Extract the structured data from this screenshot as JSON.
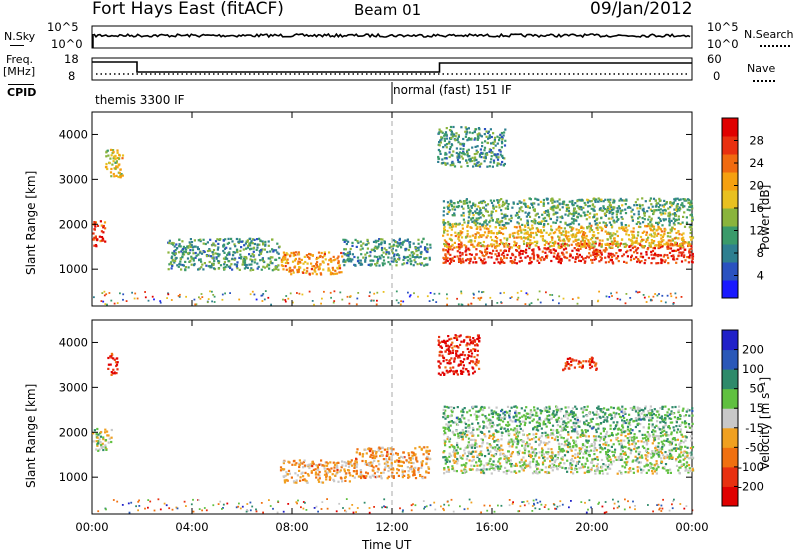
{
  "header": {
    "station": "Fort Hays East (fitACF)",
    "beam": "Beam 01",
    "date": "09/Jan/2012"
  },
  "top_panels": {
    "nsky_label": "N.Sky",
    "nsearch_label": "N.Search",
    "nsky_ticks": [
      "10^5",
      "10^0"
    ],
    "nsearch_ticks": [
      "10^5",
      "10^0"
    ],
    "freq_label": "Freq.",
    "freq_unit": "[MHz]",
    "freq_ticks": [
      "18",
      "8"
    ],
    "nave_label": "Nave",
    "nave_ticks": [
      "60",
      "0"
    ],
    "cpid_label": "CPID",
    "cpid_modes": [
      {
        "label": "themis 3300 IF",
        "start_hour": 0,
        "end_hour": 12
      },
      {
        "label": "normal (fast) 151 IF",
        "start_hour": 12,
        "end_hour": 24
      }
    ]
  },
  "chart_data": [
    {
      "type": "heatmap",
      "name": "power-panel",
      "ylabel": "Slant Range [km]",
      "ylim": [
        180,
        4500
      ],
      "yticks": [
        "1000",
        "2000",
        "3000",
        "4000"
      ],
      "xlim_hours": [
        0,
        24
      ],
      "colorbar": {
        "label": "Power [dB]",
        "ticks": [
          "4",
          "8",
          "12",
          "16",
          "20",
          "24",
          "28"
        ],
        "colors": [
          "#1a1aff",
          "#2a52c0",
          "#2e7f90",
          "#3a9a6a",
          "#8ab43c",
          "#e8c020",
          "#f5a010",
          "#f06a10",
          "#e83010",
          "#e00000"
        ]
      },
      "bands": [
        {
          "start_hour": 0.0,
          "end_hour": 0.5,
          "range_low": 1500,
          "range_high": 2100,
          "level": 0.85
        },
        {
          "start_hour": 0.5,
          "end_hour": 1.2,
          "range_low": 3000,
          "range_high": 3700,
          "level": 0.55
        },
        {
          "start_hour": 3.0,
          "end_hour": 7.5,
          "range_low": 1000,
          "range_high": 1700,
          "level": 0.3
        },
        {
          "start_hour": 7.5,
          "end_hour": 10.0,
          "range_low": 900,
          "range_high": 1400,
          "level": 0.7
        },
        {
          "start_hour": 10.0,
          "end_hour": 13.5,
          "range_low": 1100,
          "range_high": 1700,
          "level": 0.3
        },
        {
          "start_hour": 14.0,
          "end_hour": 24.0,
          "range_low": 1150,
          "range_high": 1600,
          "level": 0.9
        },
        {
          "start_hour": 14.0,
          "end_hour": 24.0,
          "range_low": 1500,
          "range_high": 2000,
          "level": 0.6
        },
        {
          "start_hour": 14.0,
          "end_hour": 24.0,
          "range_low": 2000,
          "range_high": 2600,
          "level": 0.35
        },
        {
          "start_hour": 13.8,
          "end_hour": 16.5,
          "range_low": 3300,
          "range_high": 4200,
          "level": 0.3
        }
      ]
    },
    {
      "type": "heatmap",
      "name": "velocity-panel",
      "ylabel": "Slant Range [km]",
      "ylim": [
        180,
        4500
      ],
      "yticks": [
        "1000",
        "2000",
        "3000",
        "4000"
      ],
      "xlabel": "Time UT",
      "xticks": [
        "00:00",
        "04:00",
        "08:00",
        "12:00",
        "16:00",
        "20:00",
        "00:00"
      ],
      "xlim_hours": [
        0,
        24
      ],
      "colorbar": {
        "label": "Velocity [m s⁻¹]",
        "ticks": [
          "200",
          "100",
          "50",
          "15",
          "-15",
          "-50",
          "-100",
          "-200"
        ],
        "colors": [
          "#2020c8",
          "#2a58b8",
          "#2e8a6a",
          "#60c040",
          "#c8c8c8",
          "#f0a020",
          "#f07010",
          "#e83010",
          "#e00000"
        ]
      },
      "bands": [
        {
          "start_hour": 0.0,
          "end_hour": 0.8,
          "range_low": 1600,
          "range_high": 2100,
          "level": 0.45
        },
        {
          "start_hour": 0.6,
          "end_hour": 1.0,
          "range_low": 3300,
          "range_high": 3800,
          "level": 0.95
        },
        {
          "start_hour": 7.5,
          "end_hour": 10.5,
          "range_low": 900,
          "range_high": 1400,
          "level": 0.65
        },
        {
          "start_hour": 10.5,
          "end_hour": 13.5,
          "range_low": 1000,
          "range_high": 1700,
          "level": 0.65
        },
        {
          "start_hour": 14.0,
          "end_hour": 24.0,
          "range_low": 1100,
          "range_high": 2000,
          "level": 0.45
        },
        {
          "start_hour": 14.0,
          "end_hour": 24.0,
          "range_low": 2000,
          "range_high": 2600,
          "level": 0.35
        },
        {
          "start_hour": 13.8,
          "end_hour": 15.5,
          "range_low": 3300,
          "range_high": 4200,
          "level": 0.95
        },
        {
          "start_hour": 18.8,
          "end_hour": 20.2,
          "range_low": 3400,
          "range_high": 3700,
          "level": 0.9
        }
      ]
    }
  ]
}
